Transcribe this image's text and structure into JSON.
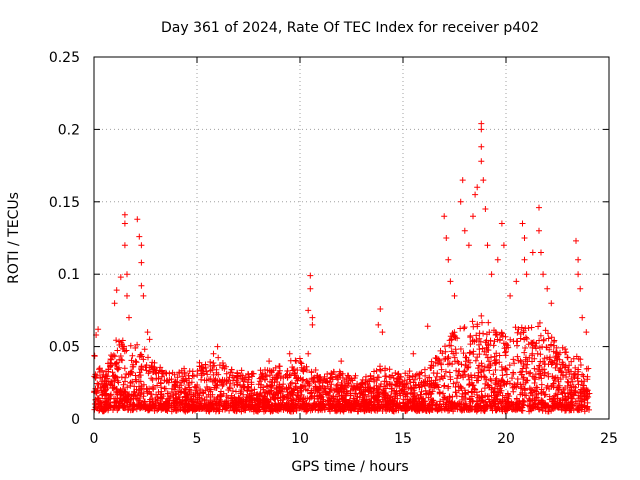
{
  "chart_data": {
    "type": "scatter",
    "title": "Day 361 of 2024, Rate Of TEC Index for receiver p402",
    "xlabel": "GPS time / hours",
    "ylabel": "ROTI / TECUs",
    "xlim": [
      0,
      25
    ],
    "ylim": [
      0,
      0.25
    ],
    "xticks": [
      0,
      5,
      10,
      15,
      20,
      25
    ],
    "yticks": [
      0,
      0.05,
      0.1,
      0.15,
      0.2,
      0.25
    ],
    "xtick_labels": [
      "0",
      "5",
      "10",
      "15",
      "20",
      "25"
    ],
    "ytick_labels": [
      "0",
      "0.05",
      "0.1",
      "0.15",
      "0.2",
      "0.25"
    ],
    "grid": true,
    "marker": "+",
    "series": [
      {
        "name": "ROTI",
        "color": "#ff0000",
        "baseline_envelope": {
          "x": [
            0,
            0.5,
            1,
            1.5,
            2,
            2.5,
            3,
            4,
            5,
            6,
            7,
            8,
            9,
            10,
            11,
            12,
            13,
            14,
            15,
            16,
            16.5,
            17,
            17.5,
            18,
            18.5,
            19,
            19.5,
            20,
            20.5,
            21,
            21.5,
            22,
            22.5,
            23,
            23.5,
            24
          ],
          "y_max": [
            0.045,
            0.03,
            0.05,
            0.055,
            0.05,
            0.045,
            0.035,
            0.03,
            0.035,
            0.04,
            0.03,
            0.03,
            0.035,
            0.04,
            0.03,
            0.03,
            0.025,
            0.035,
            0.03,
            0.035,
            0.04,
            0.05,
            0.06,
            0.065,
            0.07,
            0.075,
            0.06,
            0.055,
            0.06,
            0.065,
            0.07,
            0.06,
            0.05,
            0.045,
            0.04,
            0.035
          ],
          "y_min": 0.005
        },
        "peaks": [
          {
            "x": 0.1,
            "y": 0.058
          },
          {
            "x": 0.2,
            "y": 0.062
          },
          {
            "x": 1.0,
            "y": 0.08
          },
          {
            "x": 1.1,
            "y": 0.089
          },
          {
            "x": 1.3,
            "y": 0.098
          },
          {
            "x": 1.5,
            "y": 0.141
          },
          {
            "x": 1.5,
            "y": 0.135
          },
          {
            "x": 1.5,
            "y": 0.12
          },
          {
            "x": 1.6,
            "y": 0.1
          },
          {
            "x": 1.6,
            "y": 0.085
          },
          {
            "x": 1.7,
            "y": 0.07
          },
          {
            "x": 2.1,
            "y": 0.138
          },
          {
            "x": 2.2,
            "y": 0.126
          },
          {
            "x": 2.3,
            "y": 0.12
          },
          {
            "x": 2.3,
            "y": 0.108
          },
          {
            "x": 2.3,
            "y": 0.092
          },
          {
            "x": 2.4,
            "y": 0.085
          },
          {
            "x": 2.6,
            "y": 0.06
          },
          {
            "x": 2.7,
            "y": 0.055
          },
          {
            "x": 5.8,
            "y": 0.045
          },
          {
            "x": 6.0,
            "y": 0.05
          },
          {
            "x": 8.5,
            "y": 0.04
          },
          {
            "x": 9.5,
            "y": 0.045
          },
          {
            "x": 10.4,
            "y": 0.075
          },
          {
            "x": 10.5,
            "y": 0.099
          },
          {
            "x": 10.5,
            "y": 0.09
          },
          {
            "x": 10.6,
            "y": 0.07
          },
          {
            "x": 10.6,
            "y": 0.065
          },
          {
            "x": 10.4,
            "y": 0.045
          },
          {
            "x": 12.0,
            "y": 0.04
          },
          {
            "x": 13.8,
            "y": 0.065
          },
          {
            "x": 13.9,
            "y": 0.076
          },
          {
            "x": 14.0,
            "y": 0.06
          },
          {
            "x": 15.5,
            "y": 0.045
          },
          {
            "x": 16.2,
            "y": 0.064
          },
          {
            "x": 17.0,
            "y": 0.14
          },
          {
            "x": 17.1,
            "y": 0.125
          },
          {
            "x": 17.2,
            "y": 0.11
          },
          {
            "x": 17.3,
            "y": 0.095
          },
          {
            "x": 17.5,
            "y": 0.085
          },
          {
            "x": 17.8,
            "y": 0.15
          },
          {
            "x": 17.9,
            "y": 0.165
          },
          {
            "x": 18.0,
            "y": 0.13
          },
          {
            "x": 18.2,
            "y": 0.12
          },
          {
            "x": 18.4,
            "y": 0.14
          },
          {
            "x": 18.5,
            "y": 0.155
          },
          {
            "x": 18.6,
            "y": 0.16
          },
          {
            "x": 18.8,
            "y": 0.204
          },
          {
            "x": 18.8,
            "y": 0.2
          },
          {
            "x": 18.8,
            "y": 0.188
          },
          {
            "x": 18.8,
            "y": 0.178
          },
          {
            "x": 18.9,
            "y": 0.165
          },
          {
            "x": 19.0,
            "y": 0.145
          },
          {
            "x": 19.1,
            "y": 0.12
          },
          {
            "x": 19.3,
            "y": 0.1
          },
          {
            "x": 19.6,
            "y": 0.11
          },
          {
            "x": 19.8,
            "y": 0.135
          },
          {
            "x": 19.9,
            "y": 0.12
          },
          {
            "x": 20.2,
            "y": 0.085
          },
          {
            "x": 20.5,
            "y": 0.095
          },
          {
            "x": 20.8,
            "y": 0.135
          },
          {
            "x": 20.9,
            "y": 0.125
          },
          {
            "x": 20.9,
            "y": 0.11
          },
          {
            "x": 21.0,
            "y": 0.1
          },
          {
            "x": 21.3,
            "y": 0.115
          },
          {
            "x": 21.6,
            "y": 0.146
          },
          {
            "x": 21.6,
            "y": 0.13
          },
          {
            "x": 21.7,
            "y": 0.115
          },
          {
            "x": 21.8,
            "y": 0.1
          },
          {
            "x": 22.0,
            "y": 0.09
          },
          {
            "x": 22.2,
            "y": 0.08
          },
          {
            "x": 23.4,
            "y": 0.123
          },
          {
            "x": 23.5,
            "y": 0.11
          },
          {
            "x": 23.5,
            "y": 0.1
          },
          {
            "x": 23.6,
            "y": 0.09
          },
          {
            "x": 23.7,
            "y": 0.07
          },
          {
            "x": 23.9,
            "y": 0.06
          }
        ]
      }
    ]
  }
}
